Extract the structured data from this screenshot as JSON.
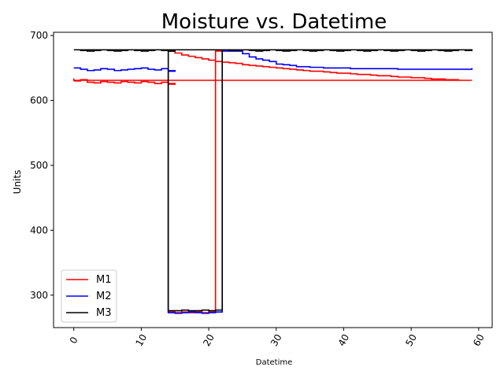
{
  "chart_data": {
    "type": "line",
    "title": "Moisture vs. Datetime",
    "xlabel": "Datetime",
    "ylabel": "Units",
    "xlim": [
      -3,
      62
    ],
    "ylim": [
      250,
      705
    ],
    "xticks": [
      0,
      10,
      20,
      30,
      40,
      50,
      60
    ],
    "yticks": [
      300,
      400,
      500,
      600,
      700
    ],
    "grid": false,
    "legend_position": "lower-left",
    "series": [
      {
        "name": "M1",
        "color": "#ff0000",
        "x": [
          0,
          1,
          2,
          3,
          4,
          5,
          6,
          7,
          8,
          9,
          10,
          11,
          12,
          13,
          14,
          15,
          14,
          15,
          16,
          17,
          18,
          19,
          20,
          21,
          22,
          14,
          15,
          16,
          17,
          18,
          19,
          20,
          21,
          22,
          23,
          24,
          25,
          26,
          27,
          28,
          29,
          30,
          31,
          32,
          33,
          34,
          35,
          36,
          37,
          38,
          39,
          40,
          41,
          42,
          43,
          44,
          45,
          46,
          47,
          48,
          49,
          50,
          51,
          52,
          53,
          54,
          55,
          56,
          57,
          58,
          59,
          0
        ],
        "y": [
          630,
          632,
          628,
          627,
          629,
          628,
          627,
          629,
          628,
          627,
          629,
          628,
          626,
          628,
          626,
          625,
          274,
          273,
          274,
          273,
          274,
          273,
          274,
          676,
          678,
          676,
          673,
          670,
          668,
          666,
          664,
          662,
          660,
          659,
          658,
          657,
          655,
          654,
          653,
          652,
          651,
          650,
          649,
          648,
          647,
          646,
          645,
          645,
          644,
          643,
          642,
          642,
          641,
          640,
          640,
          639,
          638,
          638,
          637,
          636,
          636,
          635,
          635,
          634,
          633,
          633,
          632,
          632,
          631,
          631,
          631,
          634
        ]
      },
      {
        "name": "M2",
        "color": "#0000ff",
        "x": [
          0,
          1,
          2,
          3,
          4,
          5,
          6,
          7,
          8,
          9,
          10,
          11,
          12,
          13,
          14,
          15,
          14,
          15,
          16,
          17,
          18,
          19,
          20,
          21,
          22,
          23,
          24,
          25,
          26,
          27,
          28,
          29,
          30,
          31,
          32,
          33,
          34,
          35,
          36,
          37,
          38,
          39,
          40,
          41,
          42,
          43,
          44,
          45,
          46,
          47,
          48,
          49,
          50,
          51,
          52,
          53,
          54,
          55,
          56,
          57,
          58,
          59
        ],
        "y": [
          650,
          648,
          646,
          647,
          649,
          648,
          646,
          647,
          648,
          649,
          650,
          648,
          647,
          649,
          646,
          645,
          273,
          272,
          273,
          274,
          273,
          272,
          273,
          274,
          676,
          676,
          676,
          672,
          667,
          664,
          662,
          660,
          656,
          655,
          654,
          652,
          652,
          651,
          651,
          650,
          650,
          650,
          650,
          649,
          649,
          649,
          649,
          649,
          649,
          649,
          648,
          648,
          648,
          648,
          648,
          648,
          648,
          648,
          648,
          648,
          648,
          650
        ]
      },
      {
        "name": "M3",
        "color": "#000000",
        "x": [
          0,
          1,
          2,
          3,
          4,
          5,
          6,
          7,
          8,
          9,
          10,
          11,
          12,
          13,
          14,
          15,
          14,
          15,
          16,
          17,
          18,
          19,
          20,
          21,
          22,
          23,
          24,
          25,
          26,
          27,
          28,
          29,
          30,
          31,
          32,
          33,
          34,
          35,
          36,
          37,
          38,
          39,
          40,
          41,
          42,
          43,
          44,
          45,
          46,
          47,
          48,
          49,
          50,
          51,
          52,
          53,
          54,
          55,
          56,
          57,
          58,
          59,
          0
        ],
        "y": [
          678,
          677,
          676,
          677,
          678,
          677,
          676,
          677,
          678,
          677,
          676,
          677,
          678,
          677,
          676,
          677,
          276,
          276,
          277,
          276,
          276,
          277,
          276,
          277,
          678,
          677,
          677,
          678,
          677,
          676,
          677,
          678,
          677,
          676,
          677,
          678,
          677,
          676,
          677,
          678,
          677,
          676,
          677,
          678,
          677,
          676,
          677,
          678,
          677,
          676,
          677,
          678,
          677,
          676,
          677,
          678,
          677,
          676,
          677,
          678,
          677,
          678,
          678
        ]
      }
    ]
  }
}
